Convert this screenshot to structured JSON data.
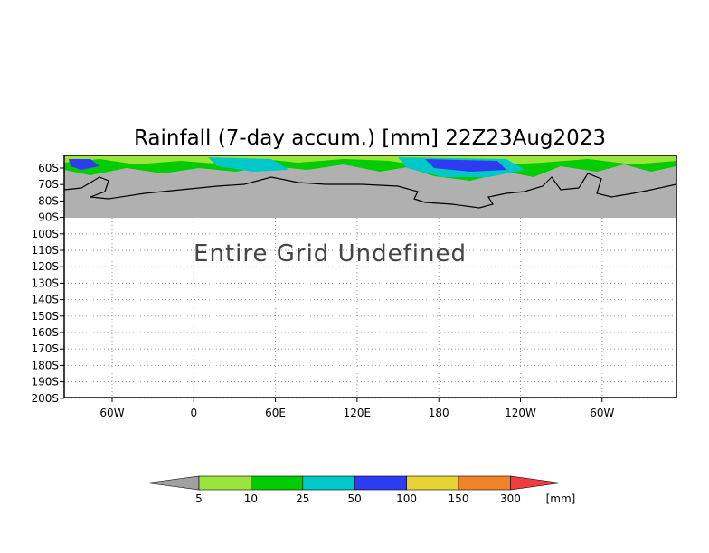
{
  "chart_data": {
    "type": "heatmap",
    "title": "Rainfall (7-day accum.) [mm] 22Z23Aug2023",
    "y_ticks": [
      "60S",
      "70S",
      "80S",
      "90S",
      "100S",
      "110S",
      "120S",
      "130S",
      "140S",
      "150S",
      "160S",
      "170S",
      "180S",
      "190S",
      "200S"
    ],
    "x_ticks": [
      "60W",
      "0",
      "60E",
      "120E",
      "180",
      "120W",
      "60W"
    ],
    "ylim": [
      "55S",
      "200S"
    ],
    "grid": true,
    "message": "Entire Grid Undefined",
    "undefined_color": "#b0b0b0",
    "colorbar": {
      "labels": [
        "5",
        "10",
        "25",
        "50",
        "100",
        "150",
        "300"
      ],
      "unit": "[mm]",
      "colors": [
        "#a0a0a0",
        "#9be43c",
        "#00cc00",
        "#00c8c8",
        "#2d3cf0",
        "#e6d232",
        "#f08228",
        "#f03c3c"
      ]
    }
  }
}
